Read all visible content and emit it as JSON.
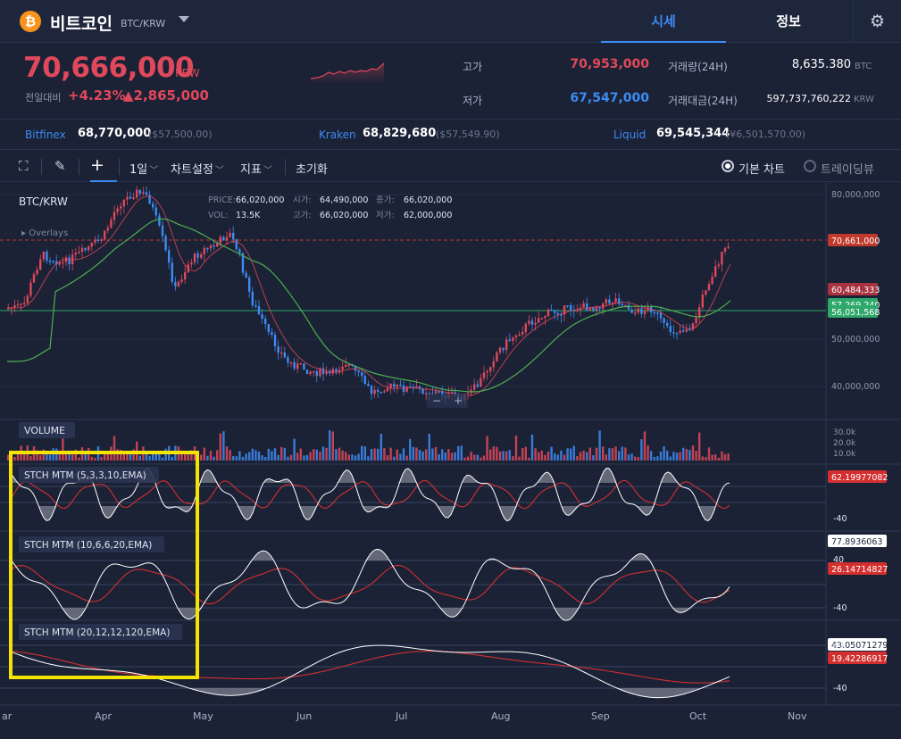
{
  "header": {
    "coin_symbol": "₿",
    "coin_name": "비트코인",
    "pair": "BTC/KRW",
    "tabs": [
      {
        "label": "시세",
        "active": true
      },
      {
        "label": "정보",
        "active": false
      }
    ],
    "settings_icon": "gear-icon"
  },
  "price": {
    "current": "70,666,000",
    "unit": "KRW",
    "change_label": "전일대비",
    "change_pct": "+4.23%",
    "change_abs": "▲2,865,000",
    "high_label": "고가",
    "high": "70,953,000",
    "low_label": "저가",
    "low": "67,547,000",
    "volume_label": "거래량(24H)",
    "volume": "8,635.380",
    "volume_unit": "BTC",
    "amount_label": "거래대금(24H)",
    "amount": "597,737,760,222",
    "amount_unit": "KRW",
    "colors": {
      "up": "#e0485b",
      "down": "#3d8bf2"
    }
  },
  "exchanges": [
    {
      "name": "Bitfinex",
      "krw": "68,770,000",
      "usd": "($57,500.00)"
    },
    {
      "name": "Kraken",
      "krw": "68,829,680",
      "usd": "($57,549.90)"
    },
    {
      "name": "Liquid",
      "krw": "69,545,344",
      "usd": "(¥6,501,570.00)"
    }
  ],
  "toolbar": {
    "expand_icon": "expand-icon",
    "draw_icon": "pencil-icon",
    "crosshair_icon": "crosshair-icon",
    "interval": "1일",
    "chart_settings": "차트설정",
    "indicators": "지표",
    "reset": "초기화",
    "basic_chart": "기본 차트",
    "trading_view": "트레이딩뷰"
  },
  "chart": {
    "symbol": "BTC/KRW",
    "overlays": "Overlays",
    "ohlc": {
      "price_label": "PRICE:",
      "price": "66,020,000",
      "open_label": "시가:",
      "open": "64,490,000",
      "close_label": "종가:",
      "close": "66,020,000",
      "vol_label": "VOL:",
      "vol": "13.5K",
      "high_label": "고가:",
      "high": "66,020,000",
      "low_label": "저가:",
      "low": "62,000,000"
    },
    "y_ticks": [
      "80,000,000",
      "50,000,000",
      "40,000,000"
    ],
    "price_tags": [
      {
        "value": "70,661,000",
        "color": "#c0392b"
      },
      {
        "value": "60,484,333",
        "color": "#a8323f"
      },
      {
        "value": "57,269,240",
        "color": "#2ea86b"
      },
      {
        "value": "56,051,568",
        "color": "#2ea86b"
      }
    ],
    "volume_label": "VOLUME",
    "volume_ticks": [
      "30.0k",
      "20.0k",
      "10.0k"
    ],
    "stoch_panels": [
      {
        "label": "STCH MTM (5,3,3,10,EMA)",
        "tag_white": "",
        "tag_red": "62.19977082",
        "tick": "-40"
      },
      {
        "label": "STCH MTM (10,6,6,20,EMA)",
        "tag_white": "77.8936063",
        "tag_red": "26.14714827",
        "tick_top": "40",
        "tick": "-40"
      },
      {
        "label": "STCH MTM (20,12,12,120,EMA)",
        "tag_white": "43.05071279",
        "tag_red": "19.42286917",
        "tick_top": "40",
        "tick": "-40"
      }
    ],
    "x_labels": [
      "ar",
      "Apr",
      "May",
      "Jun",
      "Jul",
      "Aug",
      "Sep",
      "Oct",
      "Nov"
    ]
  }
}
